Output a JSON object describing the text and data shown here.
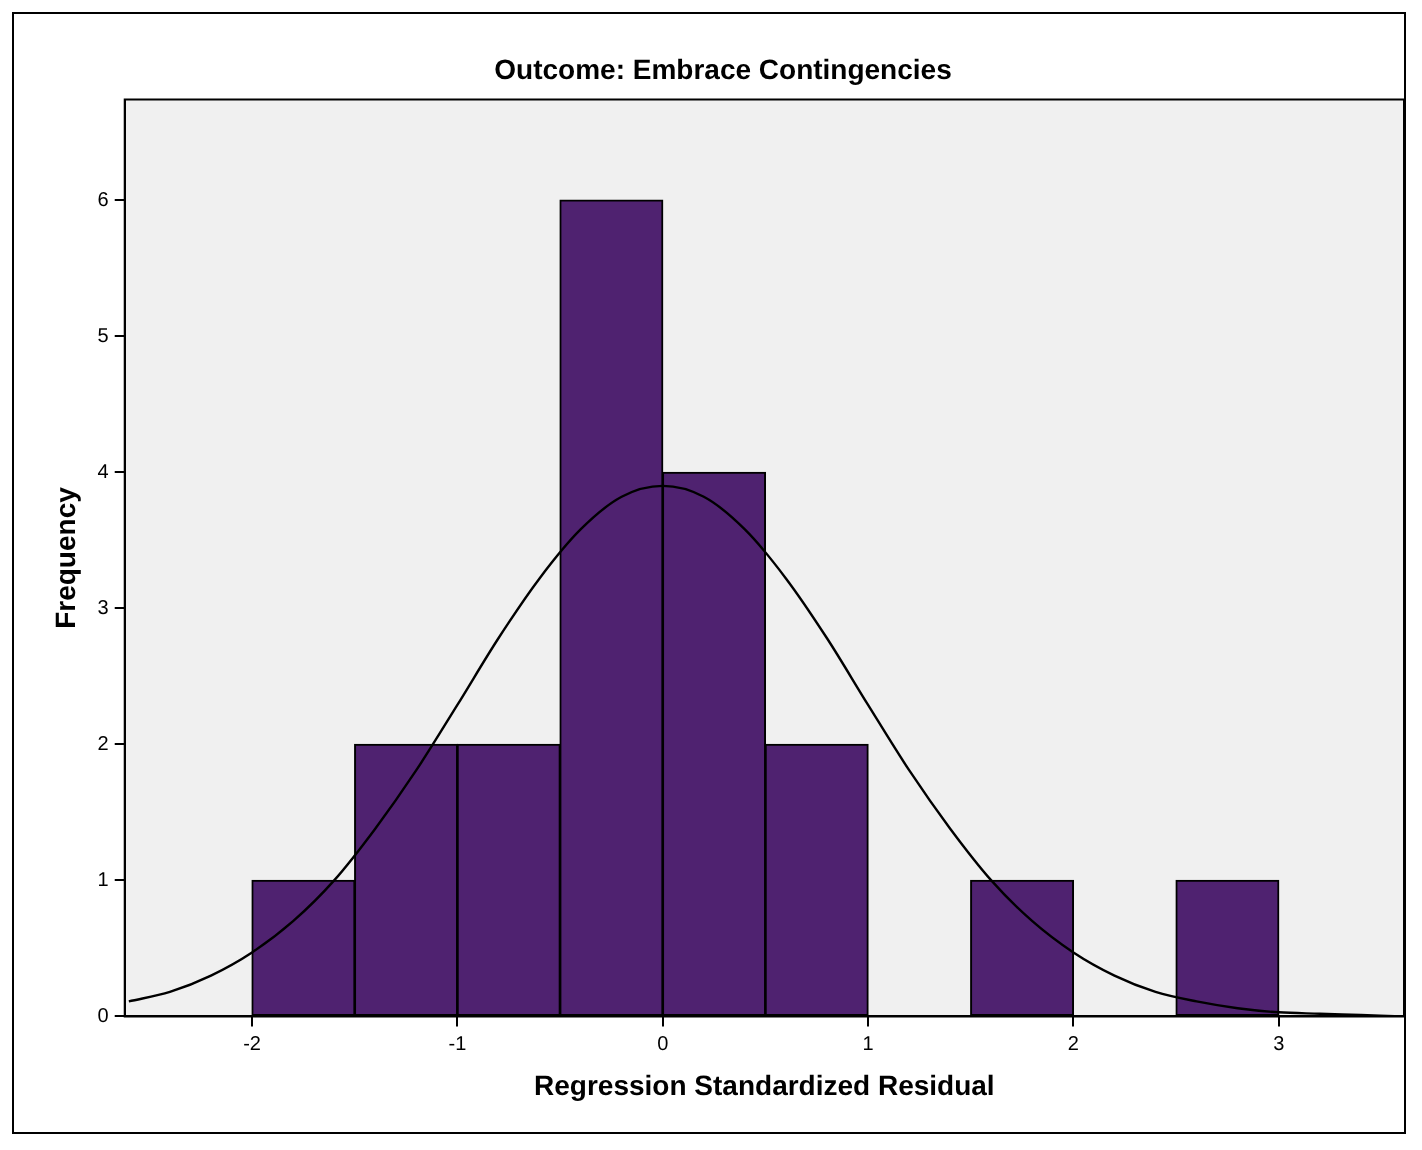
{
  "chart_data": {
    "type": "histogram",
    "title": "Outcome: Embrace Contingencies",
    "xlabel": "Regression Standardized Residual",
    "ylabel": "Frequency",
    "bins": [
      -2,
      -1.5,
      -1,
      -0.5,
      0,
      0.5,
      1,
      1.5,
      2,
      2.5,
      3
    ],
    "values": [
      1,
      2,
      2,
      6,
      4,
      2,
      0,
      1,
      0,
      1
    ],
    "color": "#4f2270",
    "series": [
      {
        "type": "line",
        "color": "#000000",
        "x": [
          -2.6,
          -2.4,
          -2.2,
          -2.0,
          -1.8,
          -1.6,
          -1.4,
          -1.2,
          -1.0,
          -0.8,
          -0.6,
          -0.4,
          -0.2,
          0,
          0.2,
          0.4,
          0.6,
          0.8,
          1.0,
          1.2,
          1.4,
          1.6,
          1.8,
          2.0,
          2.2,
          2.4,
          2.6,
          2.8,
          3.0,
          3.2,
          3.4,
          3.6
        ],
        "values": [
          0.11,
          0.18,
          0.3,
          0.47,
          0.7,
          1.0,
          1.38,
          1.81,
          2.29,
          2.78,
          3.22,
          3.58,
          3.82,
          3.9,
          3.82,
          3.58,
          3.22,
          2.78,
          2.29,
          1.81,
          1.38,
          1.0,
          0.7,
          0.47,
          0.3,
          0.18,
          0.11,
          0.06,
          0.03,
          0.02,
          0.01,
          0
        ]
      }
    ],
    "xlim": [
      -2.62,
      3.61
    ],
    "xticks": [
      -2,
      -1,
      0,
      1,
      2,
      3
    ],
    "ylim": [
      0,
      6.74
    ],
    "yticks": [
      0,
      1,
      2,
      3,
      4,
      5,
      6
    ],
    "grid": false,
    "legend": false
  }
}
